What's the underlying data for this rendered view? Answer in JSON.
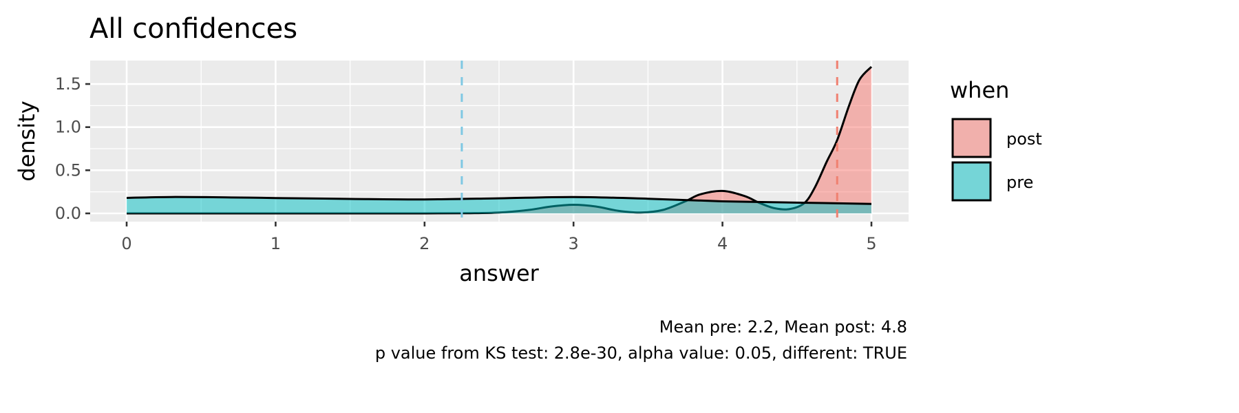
{
  "chart_data": {
    "type": "area",
    "title": "All confidences",
    "xlabel": "answer",
    "ylabel": "density",
    "xlim": [
      -0.25,
      5.25
    ],
    "ylim": [
      -0.07,
      1.75
    ],
    "x_ticks": [
      "0",
      "1",
      "2",
      "3",
      "4",
      "5"
    ],
    "x_tick_values": [
      0,
      1,
      2,
      3,
      4,
      5
    ],
    "y_ticks": [
      "0.0",
      "0.5",
      "1.0",
      "1.5"
    ],
    "y_tick_values": [
      0,
      0.5,
      1.0,
      1.5
    ],
    "grid": true,
    "legend": {
      "title": "when",
      "position": "right",
      "entries": [
        "post",
        "pre"
      ]
    },
    "series": [
      {
        "name": "post",
        "color": "#F8766D",
        "x": [
          0,
          0.5,
          1,
          1.5,
          2,
          2.3,
          2.5,
          2.7,
          2.85,
          3,
          3.15,
          3.3,
          3.45,
          3.6,
          3.75,
          3.85,
          4,
          4.15,
          4.25,
          4.35,
          4.45,
          4.55,
          4.62,
          4.7,
          4.77,
          4.85,
          4.92,
          5
        ],
        "y": [
          0,
          0,
          0,
          0,
          0,
          0.002,
          0.01,
          0.04,
          0.08,
          0.1,
          0.08,
          0.03,
          0.01,
          0.04,
          0.14,
          0.22,
          0.26,
          0.2,
          0.12,
          0.06,
          0.05,
          0.12,
          0.3,
          0.6,
          0.85,
          1.25,
          1.55,
          1.7
        ],
        "mean": 4.77
      },
      {
        "name": "pre",
        "color": "#00BFC4",
        "x": [
          0,
          0.3,
          0.7,
          1,
          1.5,
          2,
          2.5,
          3,
          3.5,
          4,
          4.5,
          5
        ],
        "y": [
          0.18,
          0.19,
          0.185,
          0.178,
          0.168,
          0.162,
          0.175,
          0.19,
          0.17,
          0.14,
          0.125,
          0.11
        ],
        "mean": 2.25
      }
    ],
    "caption": [
      "Mean pre: 2.2, Mean post: 4.8",
      "p value from KS test: 2.8e-30, alpha value: 0.05, different: TRUE"
    ]
  }
}
